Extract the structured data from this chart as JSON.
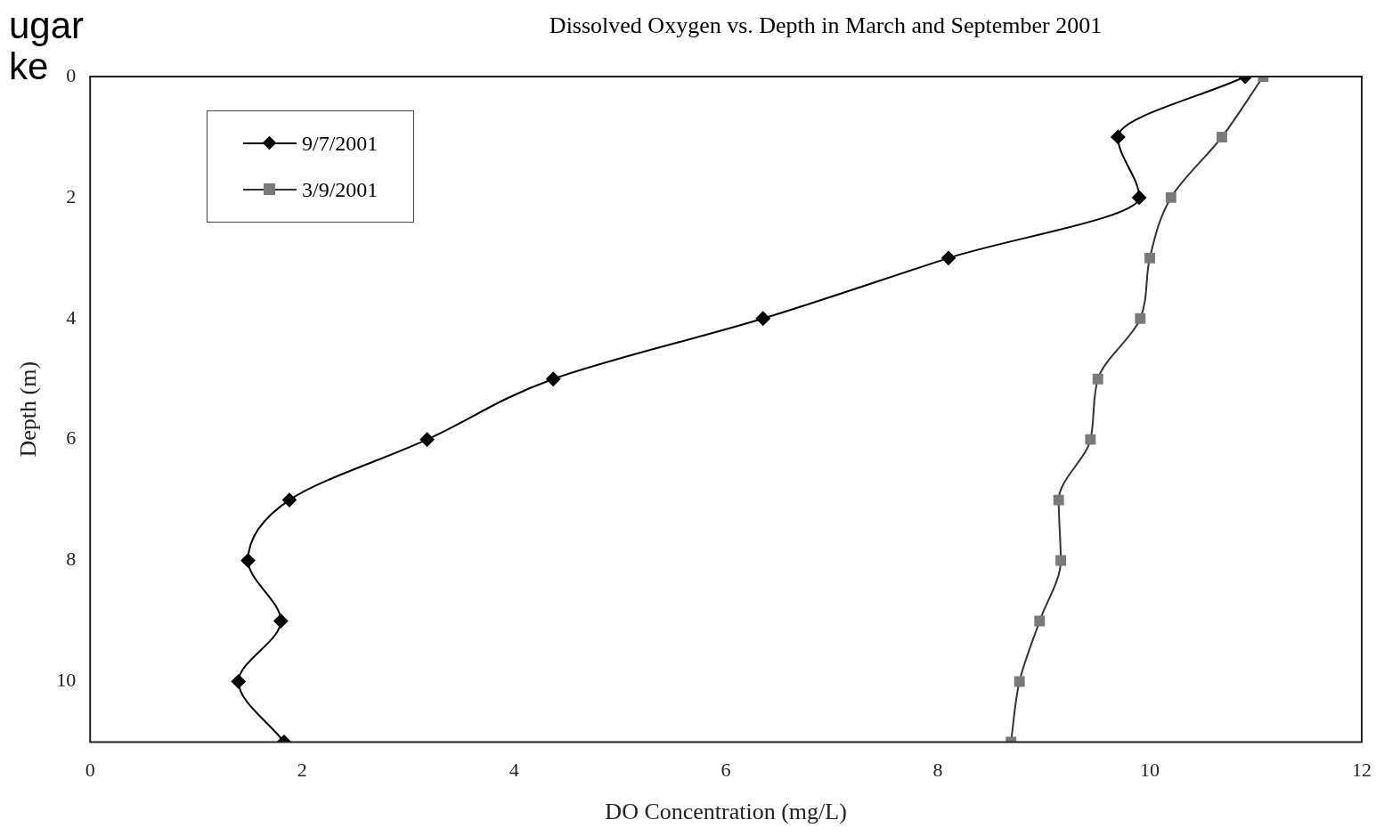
{
  "chart_data": {
    "type": "line",
    "title": "Dissolved Oxygen vs. Depth in March and September 2001",
    "xlabel": "DO Concentration (mg/L)",
    "ylabel": "Depth (m)",
    "annotations": [
      "ugar",
      "ke"
    ],
    "series": [
      {
        "name": "9/7/2001",
        "color": "#000000",
        "marker": "diamond",
        "x": [
          10.9,
          9.7,
          9.9,
          8.1,
          6.35,
          4.37,
          3.18,
          1.88,
          1.49,
          1.8,
          1.4,
          1.83
        ],
        "values": [
          0,
          1,
          2,
          3,
          4,
          5,
          6,
          7,
          8,
          9,
          10,
          11
        ]
      },
      {
        "name": "3/9/2001",
        "color": "#7a7a7a",
        "marker": "square",
        "x": [
          11.07,
          10.68,
          10.2,
          10.0,
          9.91,
          9.51,
          9.44,
          9.14,
          9.16,
          8.96,
          8.77,
          8.69
        ],
        "values": [
          0,
          1,
          2,
          3,
          4,
          5,
          6,
          7,
          8,
          9,
          10,
          11
        ]
      }
    ],
    "xlim": [
      0,
      12
    ],
    "xticks": [
      0,
      2,
      4,
      6,
      8,
      10,
      12
    ],
    "ylim": [
      11,
      0
    ],
    "yticks": [
      0,
      2,
      4,
      6,
      8,
      10
    ],
    "grid": false,
    "legend": "top left"
  }
}
